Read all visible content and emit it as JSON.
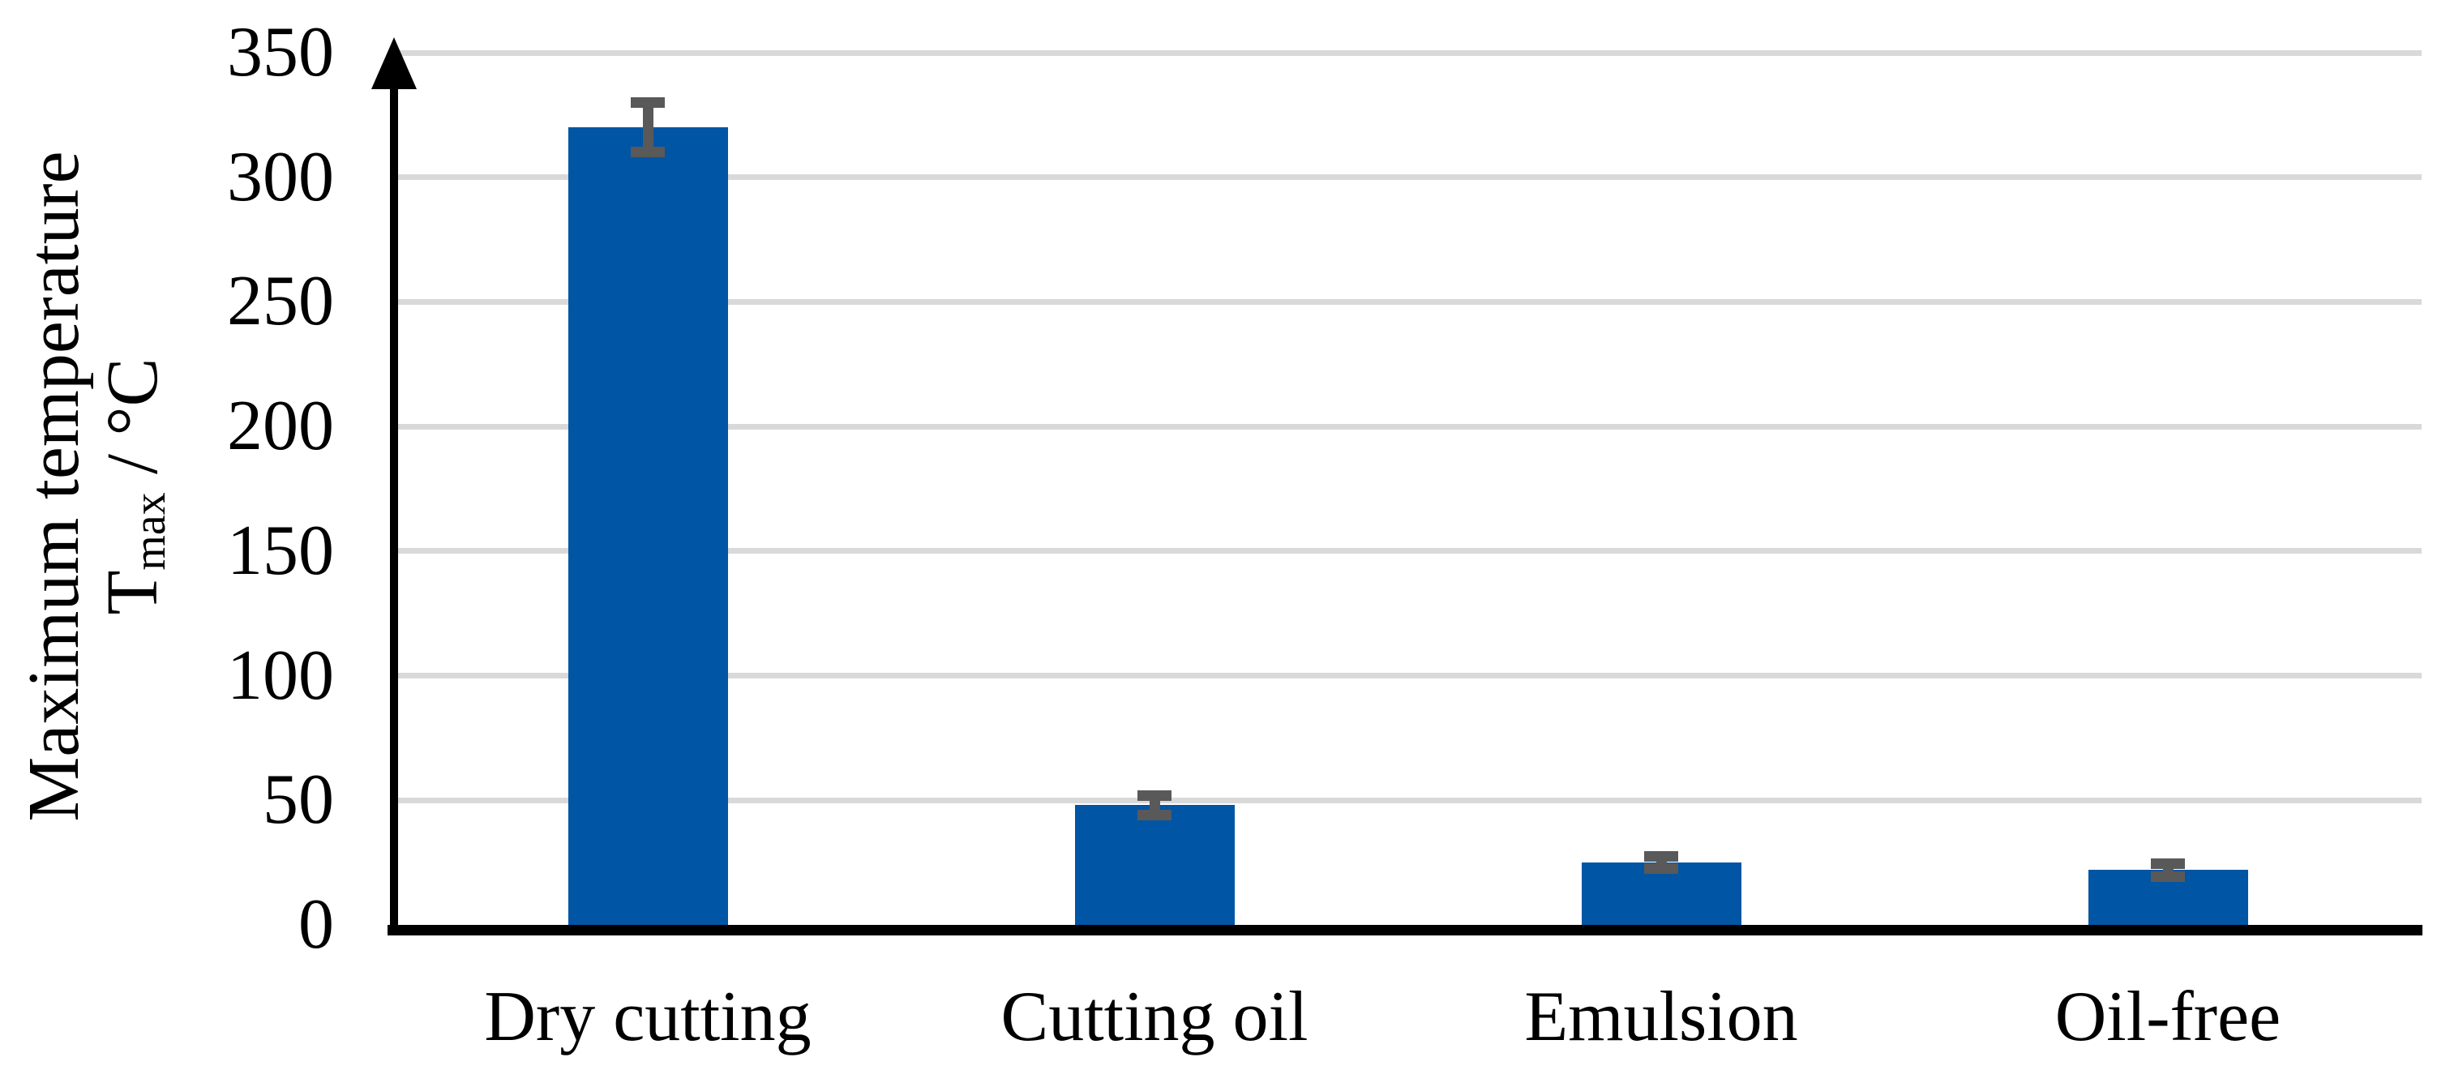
{
  "chart_data": {
    "type": "bar",
    "categories": [
      "Dry cutting",
      "Cutting oil",
      "Emulsion",
      "Oil-free"
    ],
    "values": [
      320,
      48,
      25,
      22
    ],
    "error_bars": [
      10,
      4,
      2.5,
      2.5
    ],
    "ylabel": {
      "line1": "Maximum temperature",
      "line2_prefix": "T",
      "line2_sub": "max",
      "line2_suffix": " / °C"
    },
    "yticks": [
      350,
      300,
      250,
      200,
      150,
      100,
      50,
      0
    ],
    "ylim": [
      0,
      350
    ],
    "grid": "horizontal",
    "legend": "none",
    "colors": {
      "bar": "#0055A5",
      "error_bar": "#595959",
      "gridline": "#D9D9D9",
      "axis": "#000000",
      "background": "#FFFFFF",
      "text": "#000000"
    }
  }
}
